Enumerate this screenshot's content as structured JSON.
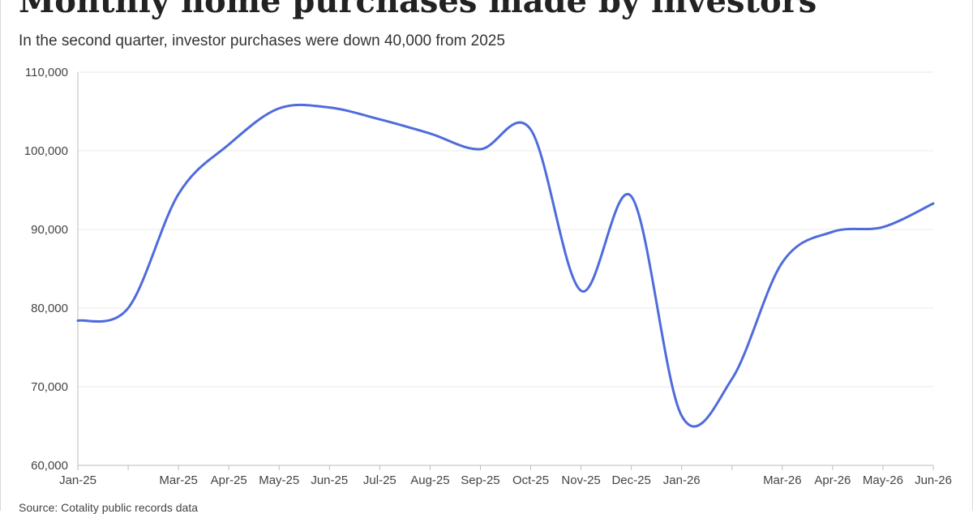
{
  "chart_data": {
    "type": "line",
    "title": "Monthly home purchases made by investors",
    "subtitle": "In the second quarter, investor purchases were down 40,000 from 2025",
    "source": "Source: Cotality public records data",
    "line_color": "#4f6bdc",
    "grid": true,
    "ylim": [
      60000,
      110000
    ],
    "y_ticks": [
      60000,
      70000,
      80000,
      90000,
      100000,
      110000
    ],
    "y_tick_labels": [
      "60,000",
      "70,000",
      "80,000",
      "90,000",
      "100,000",
      "110,000"
    ],
    "x_ticks": [
      0,
      1,
      2,
      3,
      4,
      5,
      6,
      7,
      8,
      9,
      10,
      11,
      12,
      13,
      14,
      15,
      16,
      17
    ],
    "x_tick_labels": [
      "Jan-25",
      "",
      "Mar-25",
      "Apr-25",
      "May-25",
      "Jun-25",
      "Jul-25",
      "Aug-25",
      "Sep-25",
      "Oct-25",
      "Nov-25",
      "Dec-25",
      "Jan-26",
      "",
      "Mar-26",
      "Apr-26",
      "May-26",
      "Jun-26"
    ],
    "series": [
      {
        "x": [
          0,
          1,
          2,
          3,
          4,
          5,
          6,
          7,
          8,
          9,
          10,
          11,
          12,
          13,
          14,
          15,
          16,
          17
        ],
        "values": [
          78400,
          80000,
          94500,
          100800,
          105400,
          105500,
          104000,
          102200,
          100200,
          102700,
          82200,
          94200,
          66300,
          71000,
          85800,
          89700,
          90300,
          93300
        ]
      }
    ]
  }
}
